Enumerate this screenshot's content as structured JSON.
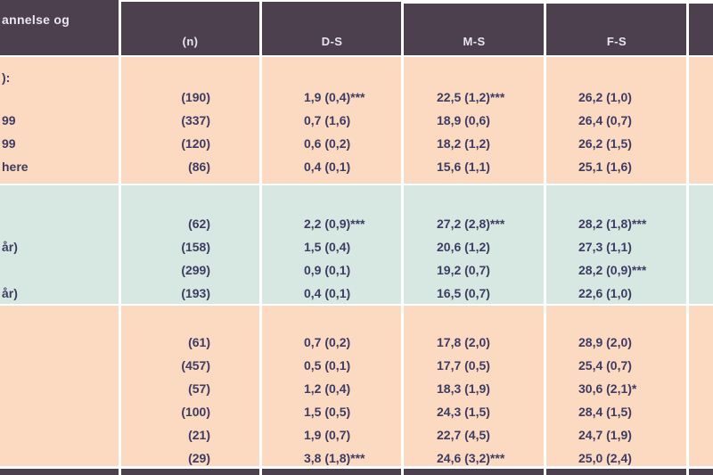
{
  "colors": {
    "header_bg": "#4c404e",
    "header_text": "#e9e5f1",
    "row_peach": "#fcd9c1",
    "row_teal": "#d7e8e2",
    "text": "#3d3c63"
  },
  "table": {
    "header": {
      "col1_fragment": "annelse og",
      "n": "(n)",
      "ds": "D-S",
      "ms": "M-S",
      "fs": "F-S"
    },
    "sections": [
      {
        "label_fragment": "):",
        "rows": [
          {
            "label": "",
            "n": "(190)",
            "ds": "1,9 (0,4)***",
            "ms": "22,5 (1,2)***",
            "fs": "26,2 (1,0)"
          },
          {
            "label": "99",
            "n": "(337)",
            "ds": "0,7 (1,6)",
            "ms": "18,9 (0,6)",
            "fs": "26,4 (0,7)"
          },
          {
            "label": "99",
            "n": "(120)",
            "ds": "0,6 (0,2)",
            "ms": "18,2 (1,2)",
            "fs": "26,2 (1,5)"
          },
          {
            "label": "here",
            "n": "(86)",
            "ds": "0,4 (0,1)",
            "ms": "15,6 (1,1)",
            "fs": "25,1 (1,6)"
          }
        ]
      },
      {
        "label_fragment": "",
        "rows": [
          {
            "label": "",
            "n": "(62)",
            "ds": "2,2 (0,9)***",
            "ms": "27,2 (2,8)***",
            "fs": "28,2 (1,8)***"
          },
          {
            "label": "år)",
            "n": "(158)",
            "ds": "1,5 (0,4)",
            "ms": "20,6 (1,2)",
            "fs": "27,3 (1,1)"
          },
          {
            "label": "",
            "n": "(299)",
            "ds": "0,9 (0,1)",
            "ms": "19,2 (0,7)",
            "fs": "28,2 (0,9)***"
          },
          {
            "label": "år)",
            "n": "(193)",
            "ds": "0,4 (0,1)",
            "ms": "16,5 (0,7)",
            "fs": "22,6 (1,0)"
          }
        ]
      },
      {
        "label_fragment": "",
        "rows": [
          {
            "label": "",
            "n": "(61)",
            "ds": "0,7 (0,2)",
            "ms": "17,8 (2,0)",
            "fs": "28,9 (2,0)"
          },
          {
            "label": "",
            "n": "(457)",
            "ds": "0,5 (0,1)",
            "ms": "17,7 (0,5)",
            "fs": "25,4 (0,7)"
          },
          {
            "label": "",
            "n": "(57)",
            "ds": "1,2 (0,4)",
            "ms": "18,3 (1,9)",
            "fs": "30,6 (2,1)*"
          },
          {
            "label": "",
            "n": "(100)",
            "ds": "1,5 (0,5)",
            "ms": "24,3 (1,5)",
            "fs": "28,4 (1,5)"
          },
          {
            "label": "",
            "n": "(21)",
            "ds": "1,9 (0,7)",
            "ms": "22,7 (4,5)",
            "fs": "24,7 (1,9)"
          },
          {
            "label": "",
            "n": "(29)",
            "ds": "3,8 (1,8)***",
            "ms": "24,6 (3,2)***",
            "fs": "25,0 (2,4)"
          }
        ]
      }
    ]
  }
}
